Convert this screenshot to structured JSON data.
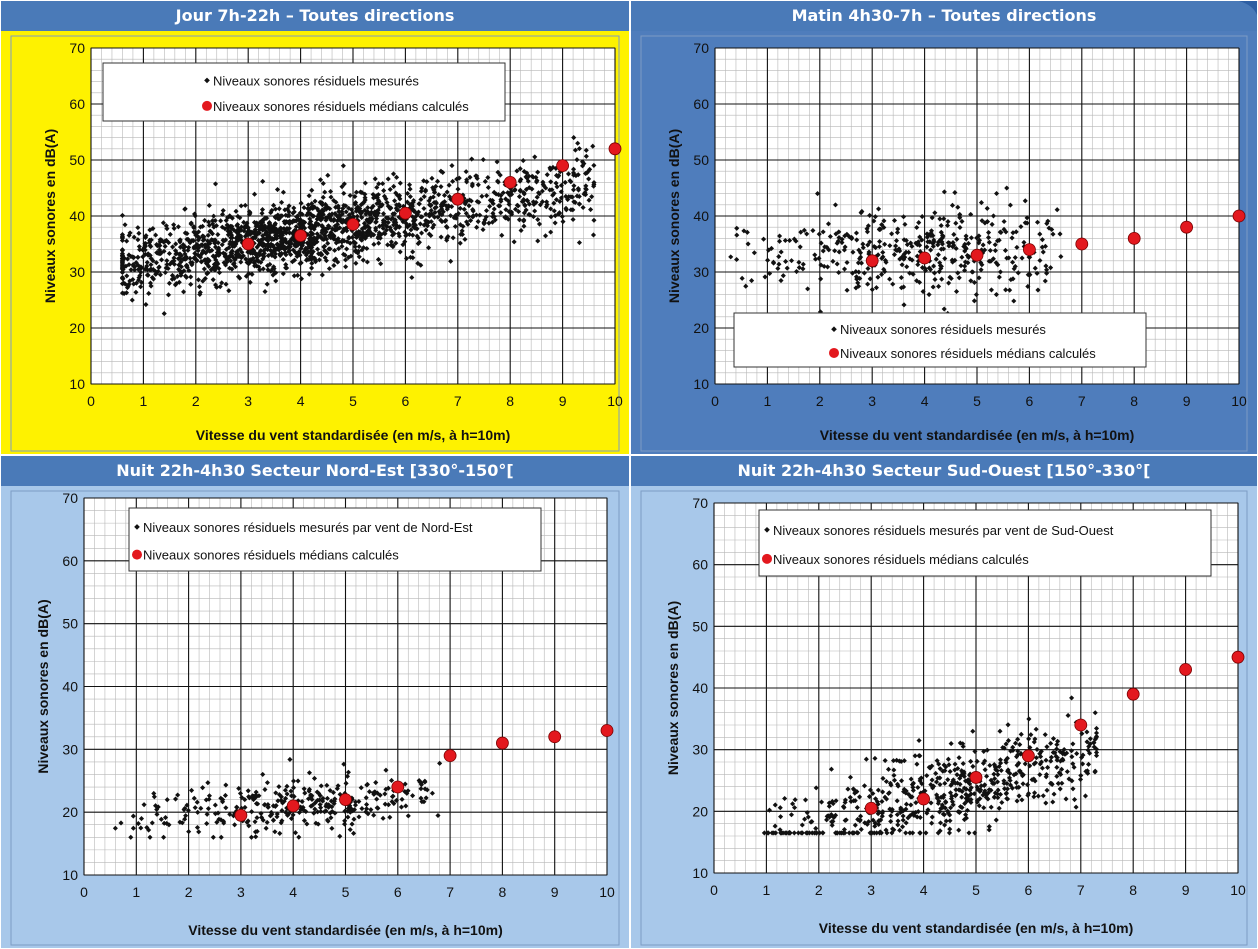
{
  "colors": {
    "header_bar": "#4a7ab8",
    "jour_background": "#fef200",
    "matin_background": "#4f7dbc",
    "nuit_background": "#a8c8ea",
    "plot_background": "#ffffff",
    "measured_marker": "#111111",
    "median_marker": "#e3181e"
  },
  "chart_data": [
    {
      "type": "scatter",
      "title": "Jour 7h-22h – Toutes directions",
      "xlabel": "Vitesse du vent standardisée (en m/s, à h=10m)",
      "ylabel": "Niveaux sonores en dB(A)",
      "xlim": [
        0,
        10
      ],
      "ylim": [
        10,
        70
      ],
      "x_ticks": [
        "0",
        "1",
        "2",
        "3",
        "4",
        "5",
        "6",
        "7",
        "8",
        "9",
        "10"
      ],
      "y_ticks": [
        "10",
        "20",
        "30",
        "40",
        "50",
        "60",
        "70"
      ],
      "grid": true,
      "legend_position": "top-left",
      "background": "yellow",
      "series": [
        {
          "name": "Niveaux sonores résiduels mesurés",
          "marker": "small-diamond",
          "cloud": {
            "x_range": [
              0.6,
              9.6
            ],
            "center": [
              3.8,
              36.5
            ],
            "slope": 1.6,
            "spread_y": 3.2,
            "count": 1800,
            "y_min": 22.5,
            "y_max": 54
          }
        },
        {
          "name": "Niveaux sonores résiduels médians calculés",
          "marker": "circle",
          "x": [
            3,
            4,
            5,
            6,
            7,
            8,
            9,
            10
          ],
          "y": [
            35,
            36.5,
            38.5,
            40.5,
            43,
            46,
            49,
            52
          ]
        }
      ]
    },
    {
      "type": "scatter",
      "title": "Matin 4h30-7h – Toutes directions",
      "xlabel": "Vitesse du vent standardisée (en m/s, à h=10m)",
      "ylabel": "Niveaux sonores en dB(A)",
      "xlim": [
        0,
        10
      ],
      "ylim": [
        10,
        70
      ],
      "x_ticks": [
        "0",
        "1",
        "2",
        "3",
        "4",
        "5",
        "6",
        "7",
        "8",
        "9",
        "10"
      ],
      "y_ticks": [
        "10",
        "20",
        "30",
        "40",
        "50",
        "60",
        "70"
      ],
      "grid": true,
      "legend_position": "bottom",
      "background": "blue",
      "series": [
        {
          "name": "Niveaux sonores résiduels mesurés",
          "marker": "small-diamond",
          "cloud": {
            "x_range": [
              0.3,
              6.6
            ],
            "center": [
              4.0,
              33.5
            ],
            "slope": 0.1,
            "spread_y": 4.2,
            "count": 420,
            "y_min": 21,
            "y_max": 46.5
          }
        },
        {
          "name": "Niveaux sonores résiduels médians calculés",
          "marker": "circle",
          "x": [
            3,
            4,
            5,
            6,
            7,
            8,
            9,
            10
          ],
          "y": [
            32,
            32.5,
            33,
            34,
            35,
            36,
            38,
            40
          ]
        }
      ]
    },
    {
      "type": "scatter",
      "title": "Nuit 22h-4h30 Secteur Nord-Est [330°-150°[",
      "xlabel": "Vitesse du vent standardisée (en m/s, à h=10m)",
      "ylabel": "Niveaux sonores en dB(A)",
      "xlim": [
        0,
        10
      ],
      "ylim": [
        10,
        70
      ],
      "x_ticks": [
        "0",
        "1",
        "2",
        "3",
        "4",
        "5",
        "6",
        "7",
        "8",
        "9",
        "10"
      ],
      "y_ticks": [
        "10",
        "20",
        "30",
        "40",
        "50",
        "60",
        "70"
      ],
      "grid": true,
      "legend_position": "top-center",
      "background": "lightblue",
      "series": [
        {
          "name": "Niveaux sonores résiduels mesurés par vent de Nord-Est",
          "marker": "small-diamond",
          "cloud": {
            "x_range": [
              0.6,
              6.8
            ],
            "center": [
              4.0,
              21
            ],
            "slope": 0.6,
            "spread_y": 2.3,
            "count": 330,
            "y_min": 16,
            "y_max": 30
          }
        },
        {
          "name": "Niveaux sonores résiduels médians calculés",
          "marker": "circle",
          "x": [
            3,
            4,
            5,
            6,
            7,
            8,
            9,
            10
          ],
          "y": [
            19.5,
            21,
            22,
            24,
            29,
            31,
            32,
            33
          ]
        }
      ]
    },
    {
      "type": "scatter",
      "title": "Nuit 22h-4h30 Secteur Sud-Ouest [150°-330°[",
      "xlabel": "Vitesse du vent standardisée (en m/s, à h=10m)",
      "ylabel": "Niveaux sonores en dB(A)",
      "xlim": [
        0,
        10
      ],
      "ylim": [
        10,
        70
      ],
      "x_ticks": [
        "0",
        "1",
        "2",
        "3",
        "4",
        "5",
        "6",
        "7",
        "8",
        "9",
        "10"
      ],
      "y_ticks": [
        "10",
        "20",
        "30",
        "40",
        "50",
        "60",
        "70"
      ],
      "grid": true,
      "legend_position": "top-left",
      "background": "lightblue",
      "series": [
        {
          "name": "Niveaux sonores résiduels mesurés par vent de Sud-Ouest",
          "marker": "small-diamond",
          "cloud": {
            "x_range": [
              0.9,
              7.3
            ],
            "center": [
              4.5,
              23.5
            ],
            "slope": 2.2,
            "spread_y": 3.5,
            "count": 620,
            "y_min": 16.5,
            "y_max": 41.5
          }
        },
        {
          "name": "Niveaux sonores résiduels médians calculés",
          "marker": "circle",
          "x": [
            3,
            4,
            5,
            6,
            7,
            8,
            9,
            10
          ],
          "y": [
            20.5,
            22,
            25.5,
            29,
            34,
            39,
            43,
            45
          ]
        }
      ]
    }
  ]
}
